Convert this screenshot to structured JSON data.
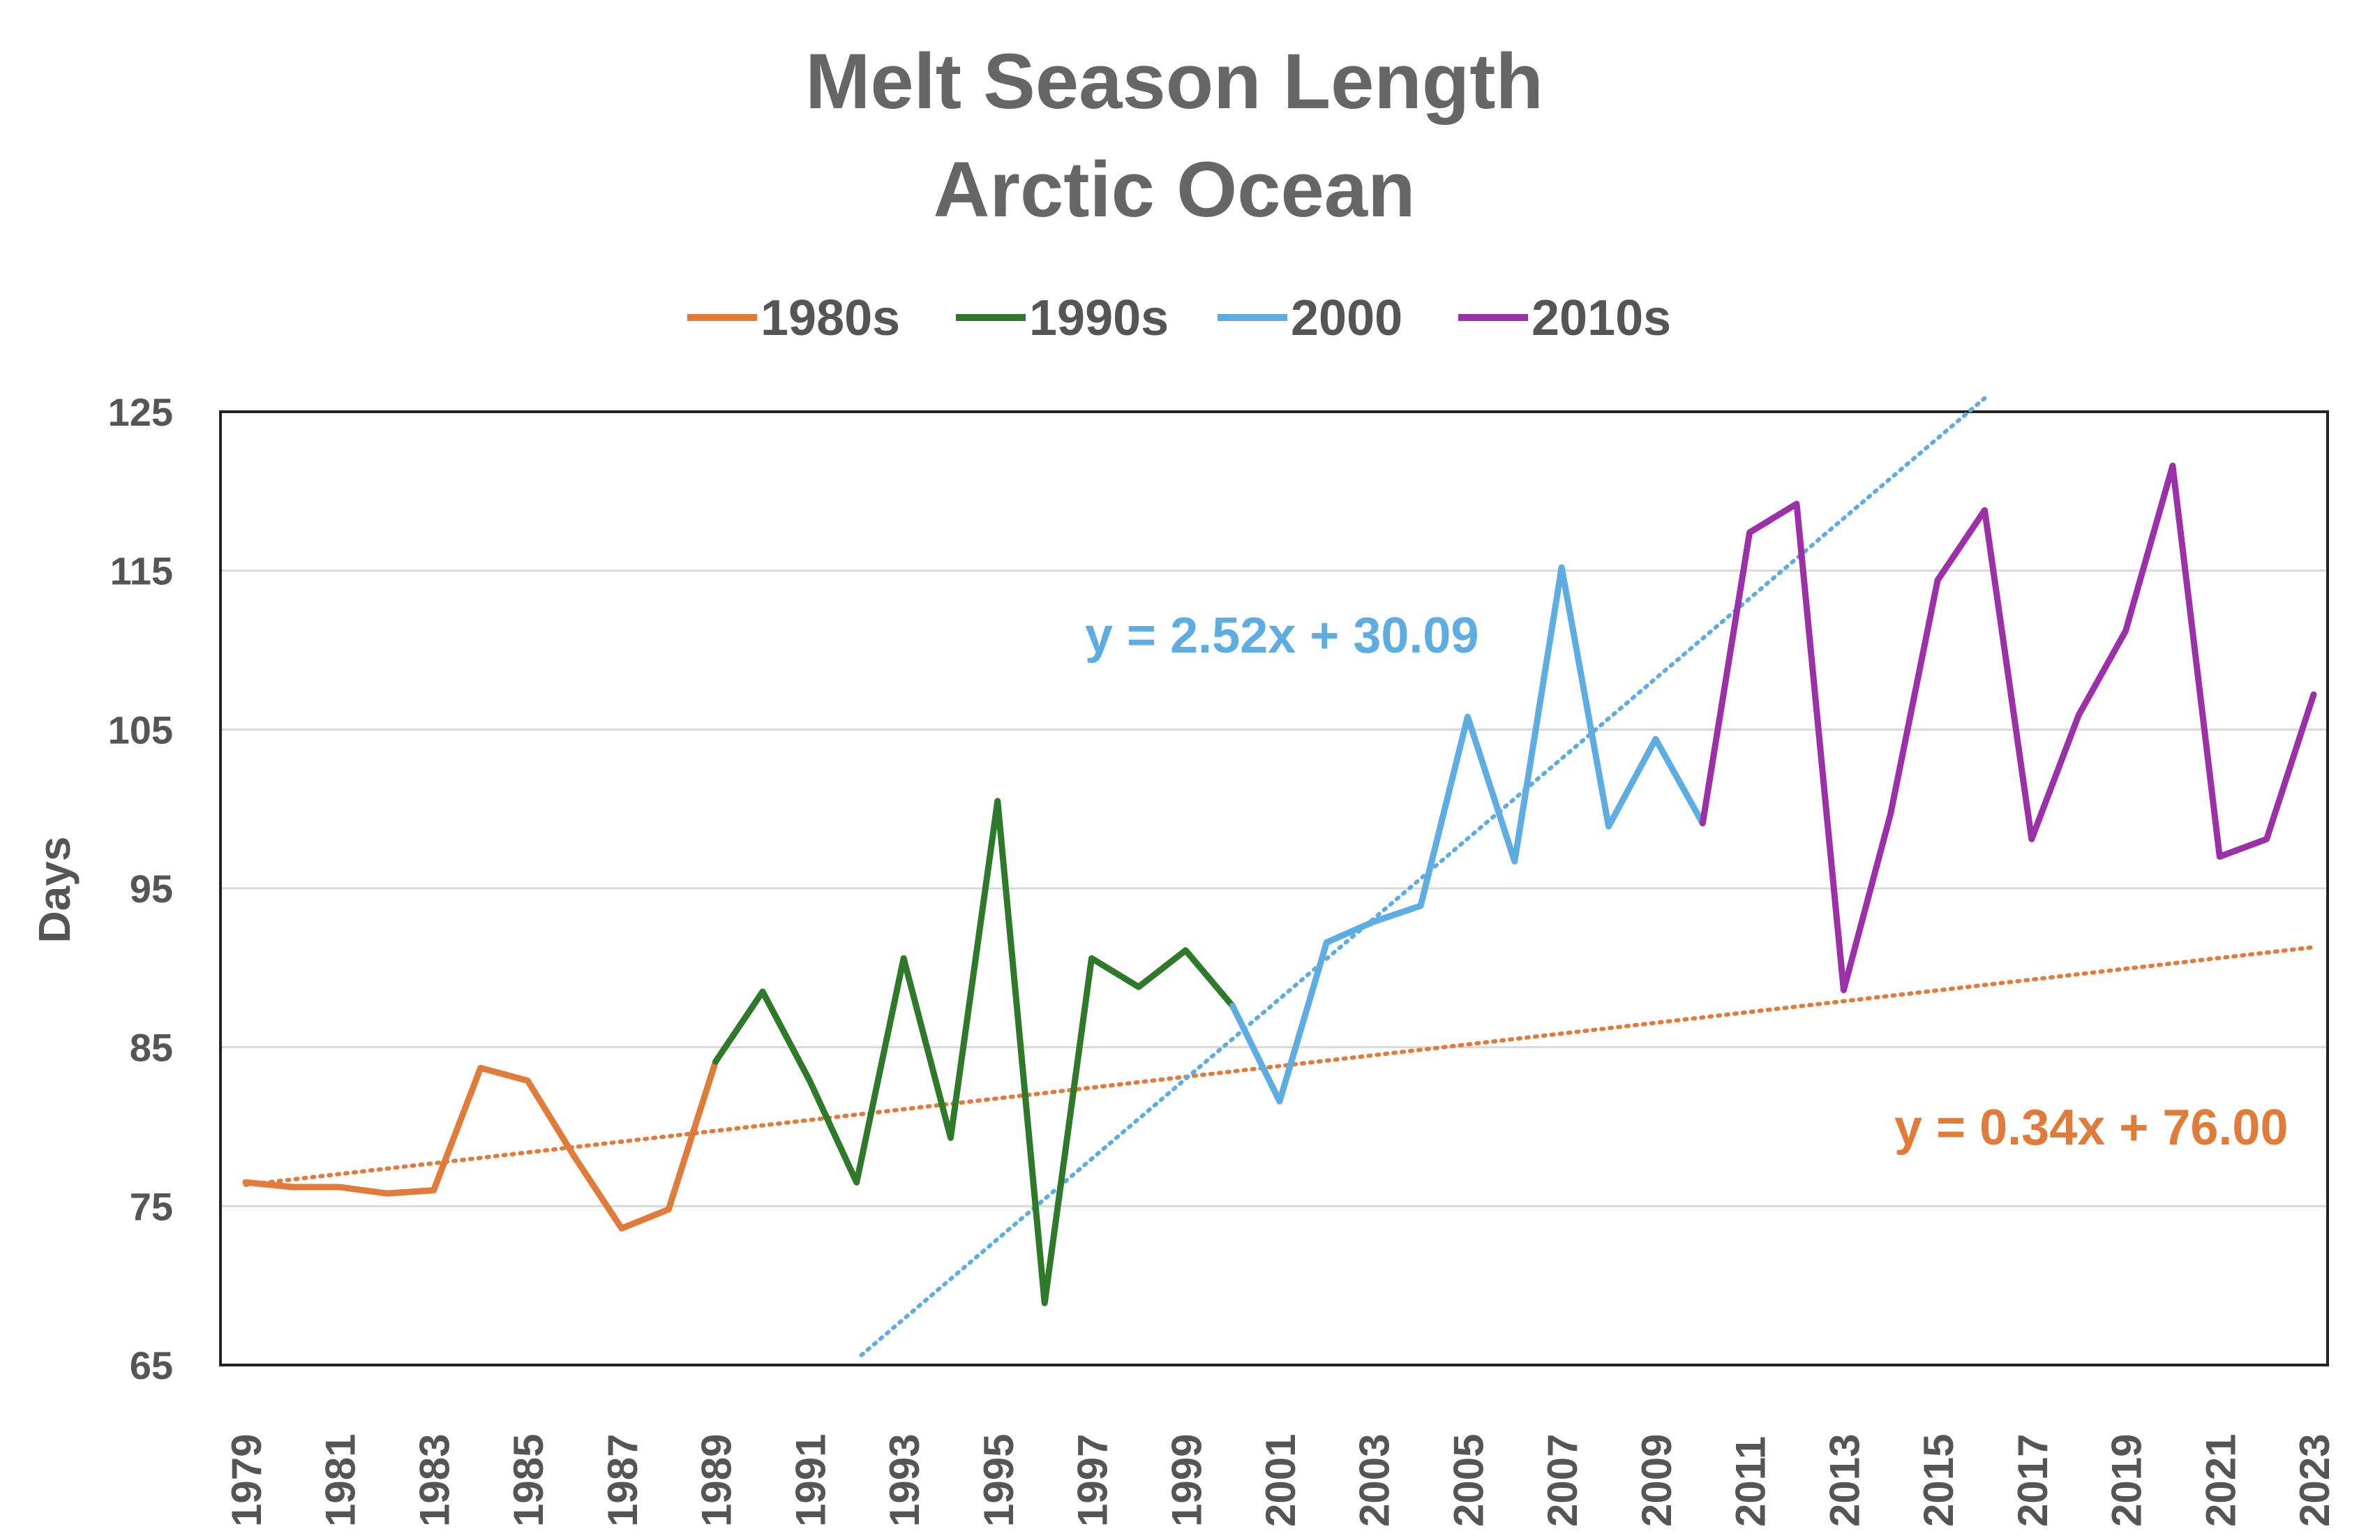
{
  "chart_data": {
    "type": "line",
    "title": [
      "Melt Season Length",
      "Arctic Ocean"
    ],
    "ylabel": "Days",
    "ylim": [
      65,
      125
    ],
    "yticks": [
      65,
      75,
      85,
      95,
      105,
      115,
      125
    ],
    "xlim": [
      1979,
      2023
    ],
    "xticks": [
      1979,
      1981,
      1983,
      1985,
      1987,
      1989,
      1991,
      1993,
      1995,
      1997,
      1999,
      2001,
      2003,
      2005,
      2007,
      2009,
      2011,
      2013,
      2015,
      2017,
      2019,
      2021,
      2023
    ],
    "grid": true,
    "legend_position": "top",
    "series": [
      {
        "name": "1980s",
        "color": "#E07B39",
        "x": [
          1979,
          1980,
          1981,
          1982,
          1983,
          1984,
          1985,
          1986,
          1987,
          1988,
          1989
        ],
        "values": [
          76.5,
          76.2,
          76.2,
          75.8,
          76.0,
          83.7,
          82.9,
          78.1,
          73.6,
          74.8,
          84.1
        ]
      },
      {
        "name": "1990s",
        "color": "#2F7A2A",
        "x": [
          1989,
          1990,
          1991,
          1992,
          1993,
          1994,
          1995,
          1996,
          1997,
          1998,
          1999,
          2000
        ],
        "values": [
          84.1,
          88.5,
          82.9,
          76.5,
          90.6,
          79.3,
          100.5,
          68.9,
          90.6,
          88.8,
          91.1,
          87.6
        ]
      },
      {
        "name": "2000",
        "color": "#5DADE2",
        "x": [
          2000,
          2001,
          2002,
          2003,
          2004,
          2005,
          2006,
          2007,
          2008,
          2009,
          2010
        ],
        "values": [
          87.6,
          81.6,
          91.6,
          92.9,
          93.9,
          105.8,
          96.7,
          115.2,
          98.9,
          104.4,
          99.1
        ]
      },
      {
        "name": "2010s",
        "color": "#9B30A8",
        "x": [
          2010,
          2011,
          2012,
          2013,
          2014,
          2015,
          2016,
          2017,
          2018,
          2019,
          2020,
          2021,
          2022,
          2023
        ],
        "values": [
          99.1,
          117.4,
          119.2,
          88.6,
          99.7,
          114.4,
          118.8,
          98.1,
          105.9,
          111.2,
          121.6,
          97.0,
          98.1,
          107.2
        ]
      }
    ],
    "trendlines": [
      {
        "equation": "y = 0.34x + 76.00",
        "slope": 0.34,
        "intercept": 76.0,
        "x_origin": 1979,
        "x_start": 1979,
        "x_end": 2023,
        "color": "#E07B39"
      },
      {
        "equation": "y = 2.52x + 30.09",
        "slope": 2.52,
        "intercept": 30.09,
        "x_origin": 1979,
        "x_start": 1992.1,
        "x_end": 2016,
        "color": "#5DADE2"
      }
    ]
  }
}
